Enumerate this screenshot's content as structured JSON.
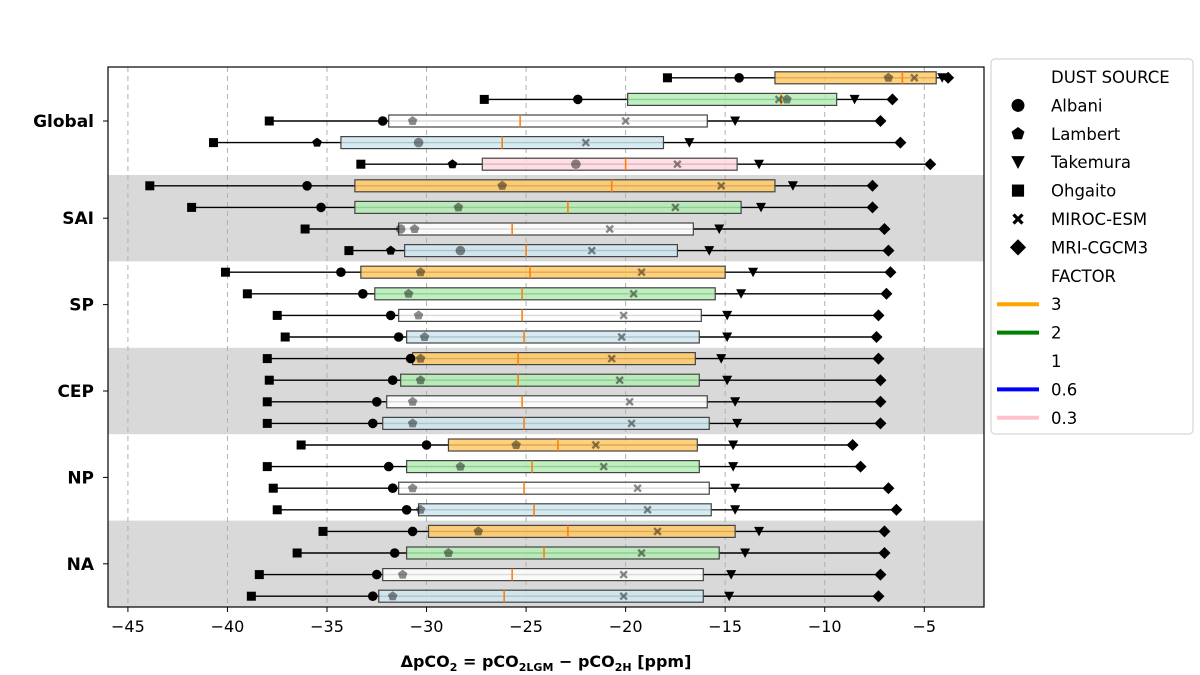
{
  "chart_data": {
    "type": "box-range",
    "xlabel_parts": [
      "ΔpCO",
      "2",
      " = pCO",
      "2LGM",
      " − pCO",
      "2H",
      " [ppm]"
    ],
    "xlim": [
      -46,
      -2
    ],
    "xticks": [
      -45,
      -40,
      -35,
      -30,
      -25,
      -20,
      -15,
      -10,
      -5
    ],
    "grid": "vertical dashed",
    "legend_position": "right",
    "regions": [
      "Global",
      "SAI",
      "SP",
      "CEP",
      "NP",
      "NA"
    ],
    "shaded_regions": [
      "SAI",
      "CEP",
      "NA"
    ],
    "factors": [
      {
        "label": "3",
        "color": "#ffa500",
        "box_color": "#ffc966"
      },
      {
        "label": "2",
        "color": "#008000",
        "box_color": "#b3ecb3"
      },
      {
        "label": "1",
        "color": "#ffffff",
        "box_color": "#ffffff"
      },
      {
        "label": "0.6",
        "color": "#0000ff",
        "box_color": "#cfe6f0"
      },
      {
        "label": "0.3",
        "color": "#ffc0cb",
        "box_color": "#ffd9df"
      }
    ],
    "sources": [
      "Albani",
      "Lambert",
      "Takemura",
      "Ohgaito",
      "MIROC-ESM",
      "MRI-CGCM3"
    ],
    "legend": {
      "dust_title": "DUST SOURCE",
      "dust_items": [
        "Albani",
        "Lambert",
        "Takemura",
        "Ohgaito",
        "MIROC-ESM",
        "MRI-CGCM3"
      ],
      "factor_title": "FACTOR",
      "factor_items": [
        "3",
        "2",
        "1",
        "0.6",
        "0.3"
      ]
    },
    "rows": [
      {
        "region": "Global",
        "factor": "3",
        "box": [
          -12.5,
          -4.4
        ],
        "median": -6.1,
        "Albani": -14.3,
        "Lambert": -6.8,
        "Takemura": -4.1,
        "Ohgaito": -17.9,
        "MIROC-ESM": -5.5,
        "MRI-CGCM3": -3.8
      },
      {
        "region": "Global",
        "factor": "2",
        "box": [
          -19.9,
          -9.4
        ],
        "median": -12.2,
        "Albani": -22.4,
        "Lambert": -11.9,
        "Takemura": -8.5,
        "Ohgaito": -27.1,
        "MIROC-ESM": -12.3,
        "MRI-CGCM3": -6.6
      },
      {
        "region": "Global",
        "factor": "1",
        "box": [
          -31.9,
          -15.9
        ],
        "median": -25.3,
        "Albani": -32.2,
        "Lambert": -30.7,
        "Takemura": -14.5,
        "Ohgaito": -37.9,
        "MIROC-ESM": -20.0,
        "MRI-CGCM3": -7.2
      },
      {
        "region": "Global",
        "factor": "0.6",
        "box": [
          -34.3,
          -18.1
        ],
        "median": -26.2,
        "Albani": -30.4,
        "Lambert": -35.5,
        "Takemura": -16.8,
        "Ohgaito": -40.7,
        "MIROC-ESM": -22.0,
        "MRI-CGCM3": -6.2
      },
      {
        "region": "Global",
        "factor": "0.3",
        "box": [
          -27.2,
          -14.4
        ],
        "median": -20.0,
        "Albani": -22.5,
        "Lambert": -28.7,
        "Takemura": -13.3,
        "Ohgaito": -33.3,
        "MIROC-ESM": -17.4,
        "MRI-CGCM3": -4.7
      },
      {
        "region": "SAI",
        "factor": "3",
        "box": [
          -33.6,
          -12.5
        ],
        "median": -20.7,
        "Albani": -36.0,
        "Lambert": -26.2,
        "Takemura": -11.6,
        "Ohgaito": -43.9,
        "MIROC-ESM": -15.2,
        "MRI-CGCM3": -7.6
      },
      {
        "region": "SAI",
        "factor": "2",
        "box": [
          -33.6,
          -14.2
        ],
        "median": -22.9,
        "Albani": -35.3,
        "Lambert": -28.4,
        "Takemura": -13.2,
        "Ohgaito": -41.8,
        "MIROC-ESM": -17.5,
        "MRI-CGCM3": -7.6
      },
      {
        "region": "SAI",
        "factor": "1",
        "box": [
          -31.4,
          -16.6
        ],
        "median": -25.7,
        "Albani": -31.3,
        "Lambert": -30.6,
        "Takemura": -15.3,
        "Ohgaito": -36.1,
        "MIROC-ESM": -20.8,
        "MRI-CGCM3": -7.0
      },
      {
        "region": "SAI",
        "factor": "0.6",
        "box": [
          -31.1,
          -17.4
        ],
        "median": -25.0,
        "Albani": -28.3,
        "Lambert": -31.8,
        "Takemura": -15.8,
        "Ohgaito": -33.9,
        "MIROC-ESM": -21.7,
        "MRI-CGCM3": -6.8
      },
      {
        "region": "SP",
        "factor": "3",
        "box": [
          -33.3,
          -15.0
        ],
        "median": -24.8,
        "Albani": -34.3,
        "Lambert": -30.3,
        "Takemura": -13.6,
        "Ohgaito": -40.1,
        "MIROC-ESM": -19.2,
        "MRI-CGCM3": -6.7
      },
      {
        "region": "SP",
        "factor": "2",
        "box": [
          -32.6,
          -15.5
        ],
        "median": -25.2,
        "Albani": -33.2,
        "Lambert": -30.9,
        "Takemura": -14.2,
        "Ohgaito": -39.0,
        "MIROC-ESM": -19.6,
        "MRI-CGCM3": -6.9
      },
      {
        "region": "SP",
        "factor": "1",
        "box": [
          -31.4,
          -16.2
        ],
        "median": -25.2,
        "Albani": -31.8,
        "Lambert": -30.4,
        "Takemura": -14.9,
        "Ohgaito": -37.5,
        "MIROC-ESM": -20.1,
        "MRI-CGCM3": -7.3
      },
      {
        "region": "SP",
        "factor": "0.6",
        "box": [
          -31.0,
          -16.3
        ],
        "median": -25.1,
        "Albani": -31.4,
        "Lambert": -30.1,
        "Takemura": -14.9,
        "Ohgaito": -37.1,
        "MIROC-ESM": -20.2,
        "MRI-CGCM3": -7.4
      },
      {
        "region": "CEP",
        "factor": "3",
        "box": [
          -30.7,
          -16.5
        ],
        "median": -25.4,
        "Albani": -30.8,
        "Lambert": -30.3,
        "Takemura": -15.2,
        "Ohgaito": -38.0,
        "MIROC-ESM": -20.7,
        "MRI-CGCM3": -7.3
      },
      {
        "region": "CEP",
        "factor": "2",
        "box": [
          -31.3,
          -16.3
        ],
        "median": -25.4,
        "Albani": -31.7,
        "Lambert": -30.3,
        "Takemura": -14.9,
        "Ohgaito": -37.9,
        "MIROC-ESM": -20.3,
        "MRI-CGCM3": -7.2
      },
      {
        "region": "CEP",
        "factor": "1",
        "box": [
          -32.0,
          -15.9
        ],
        "median": -25.2,
        "Albani": -32.5,
        "Lambert": -30.7,
        "Takemura": -14.5,
        "Ohgaito": -38.0,
        "MIROC-ESM": -19.8,
        "MRI-CGCM3": -7.2
      },
      {
        "region": "CEP",
        "factor": "0.6",
        "box": [
          -32.2,
          -15.8
        ],
        "median": -25.1,
        "Albani": -32.7,
        "Lambert": -30.7,
        "Takemura": -14.4,
        "Ohgaito": -38.0,
        "MIROC-ESM": -19.7,
        "MRI-CGCM3": -7.2
      },
      {
        "region": "NP",
        "factor": "3",
        "box": [
          -28.9,
          -16.4
        ],
        "median": -23.4,
        "Albani": -30.0,
        "Lambert": -25.5,
        "Takemura": -14.6,
        "Ohgaito": -36.3,
        "MIROC-ESM": -21.5,
        "MRI-CGCM3": -8.6
      },
      {
        "region": "NP",
        "factor": "2",
        "box": [
          -31.0,
          -16.3
        ],
        "median": -24.7,
        "Albani": -31.9,
        "Lambert": -28.3,
        "Takemura": -14.6,
        "Ohgaito": -38.0,
        "MIROC-ESM": -21.1,
        "MRI-CGCM3": -8.2
      },
      {
        "region": "NP",
        "factor": "1",
        "box": [
          -31.4,
          -15.8
        ],
        "median": -25.1,
        "Albani": -31.7,
        "Lambert": -30.7,
        "Takemura": -14.5,
        "Ohgaito": -37.7,
        "MIROC-ESM": -19.4,
        "MRI-CGCM3": -6.8
      },
      {
        "region": "NP",
        "factor": "0.6",
        "box": [
          -30.4,
          -15.7
        ],
        "median": -24.6,
        "Albani": -31.0,
        "Lambert": -30.3,
        "Takemura": -14.5,
        "Ohgaito": -37.5,
        "MIROC-ESM": -18.9,
        "MRI-CGCM3": -6.4
      },
      {
        "region": "NA",
        "factor": "3",
        "box": [
          -29.9,
          -14.5
        ],
        "median": -22.9,
        "Albani": -30.7,
        "Lambert": -27.4,
        "Takemura": -13.3,
        "Ohgaito": -35.2,
        "MIROC-ESM": -18.4,
        "MRI-CGCM3": -7.0
      },
      {
        "region": "NA",
        "factor": "2",
        "box": [
          -31.0,
          -15.3
        ],
        "median": -24.1,
        "Albani": -31.6,
        "Lambert": -28.9,
        "Takemura": -14.0,
        "Ohgaito": -36.5,
        "MIROC-ESM": -19.2,
        "MRI-CGCM3": -7.0
      },
      {
        "region": "NA",
        "factor": "1",
        "box": [
          -32.2,
          -16.1
        ],
        "median": -25.7,
        "Albani": -32.5,
        "Lambert": -31.2,
        "Takemura": -14.7,
        "Ohgaito": -38.4,
        "MIROC-ESM": -20.1,
        "MRI-CGCM3": -7.2
      },
      {
        "region": "NA",
        "factor": "0.6",
        "box": [
          -32.4,
          -16.1
        ],
        "median": -26.1,
        "Albani": -32.7,
        "Lambert": -31.7,
        "Takemura": -14.8,
        "Ohgaito": -38.8,
        "MIROC-ESM": -20.1,
        "MRI-CGCM3": -7.3
      }
    ]
  }
}
